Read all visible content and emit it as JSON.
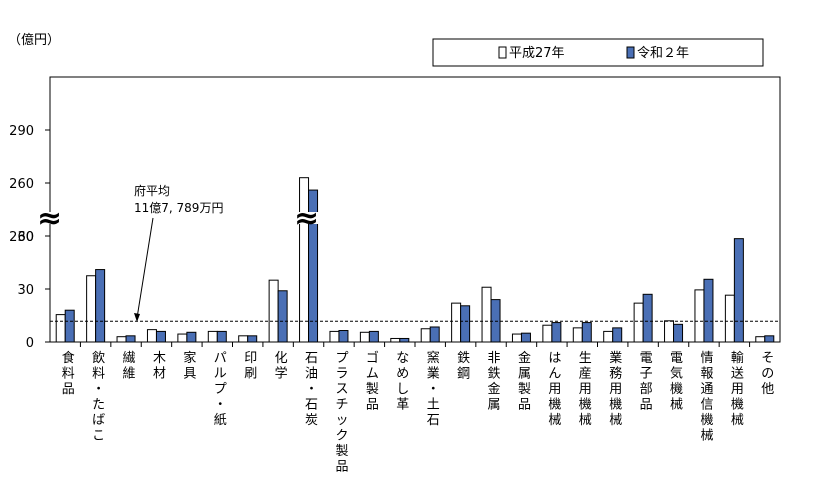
{
  "chart_data": {
    "type": "bar",
    "unit_label": "（億円）",
    "legend_position": "top-right",
    "series": [
      {
        "name": "平成27年",
        "color": "#ffffff",
        "values": [
          15.5,
          37.5,
          3,
          7,
          4.5,
          6,
          3.5,
          35,
          263,
          6,
          5.5,
          2,
          7.5,
          22,
          31,
          4.5,
          9.5,
          8,
          6,
          22,
          12,
          29.5,
          26.5,
          3
        ]
      },
      {
        "name": "令和２年",
        "color": "#4a6fb5",
        "values": [
          18,
          41,
          3.5,
          6,
          5.5,
          6,
          3.5,
          29,
          256,
          6.5,
          6,
          2,
          8.5,
          20.5,
          24,
          5,
          11,
          11,
          8,
          27,
          10,
          35.5,
          58.5,
          3.5
        ]
      }
    ],
    "categories": [
      "食料品",
      "飲料・たばこ",
      "繊維",
      "木材",
      "家具",
      "パルプ・紙",
      "印刷",
      "化学",
      "石油・石炭",
      "プラスチック製品",
      "ゴム製品",
      "なめし革",
      "窯業・土石",
      "鉄鋼",
      "非鉄金属",
      "金属製品",
      "はん用機械",
      "生産用機械",
      "業務用機械",
      "電子部品",
      "電気機械",
      "情報通信機械",
      "輸送用機械",
      "その他"
    ],
    "y_ticks": [
      0,
      30,
      60,
      230,
      260,
      290
    ],
    "y_ticks_display": [
      "0",
      "30",
      "60",
      "230",
      "260",
      "290"
    ],
    "axis_break": {
      "from": 60,
      "to": 230,
      "symbol": "≈"
    },
    "reference_line": {
      "value": 11.7789,
      "label_line1": "府平均",
      "label_line2": "11億7, 789万円"
    }
  }
}
